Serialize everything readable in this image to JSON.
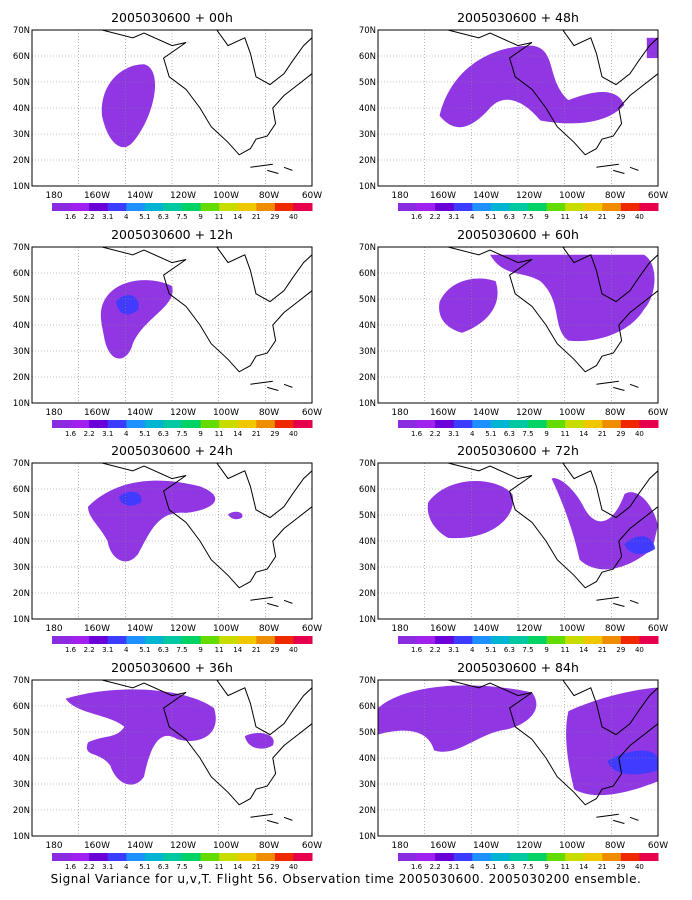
{
  "footer": "Signal Variance for u,v,T. Flight 56. Observation time 2005030600. 2005030200 ensemble.",
  "lat_labels": [
    "70N",
    "60N",
    "50N",
    "40N",
    "30N",
    "20N",
    "10N"
  ],
  "lon_labels": [
    "180",
    "160W",
    "140W",
    "120W",
    "100W",
    "80W",
    "60W"
  ],
  "colorbar": {
    "labels": [
      "1.6",
      "2.2",
      "3.1",
      "4",
      "5.1",
      "6.3",
      "7.5",
      "9",
      "11",
      "14",
      "21",
      "29",
      "40"
    ],
    "colors": [
      "#8a2be2",
      "#a020f0",
      "#6a00d8",
      "#3c3cff",
      "#1e90ff",
      "#00b4d2",
      "#00c8a0",
      "#00d264",
      "#64dc00",
      "#c8dc00",
      "#f0c800",
      "#f08c00",
      "#f02800",
      "#e6004c"
    ]
  },
  "panels": [
    {
      "id": "p1",
      "title": "2005030600 + 00h"
    },
    {
      "id": "p2",
      "title": "2005030600 + 48h"
    },
    {
      "id": "p3",
      "title": "2005030600 + 12h"
    },
    {
      "id": "p4",
      "title": "2005030600 + 60h"
    },
    {
      "id": "p5",
      "title": "2005030600 + 24h"
    },
    {
      "id": "p6",
      "title": "2005030600 + 72h"
    },
    {
      "id": "p7",
      "title": "2005030600 + 36h"
    },
    {
      "id": "p8",
      "title": "2005030600 + 84h"
    }
  ]
}
